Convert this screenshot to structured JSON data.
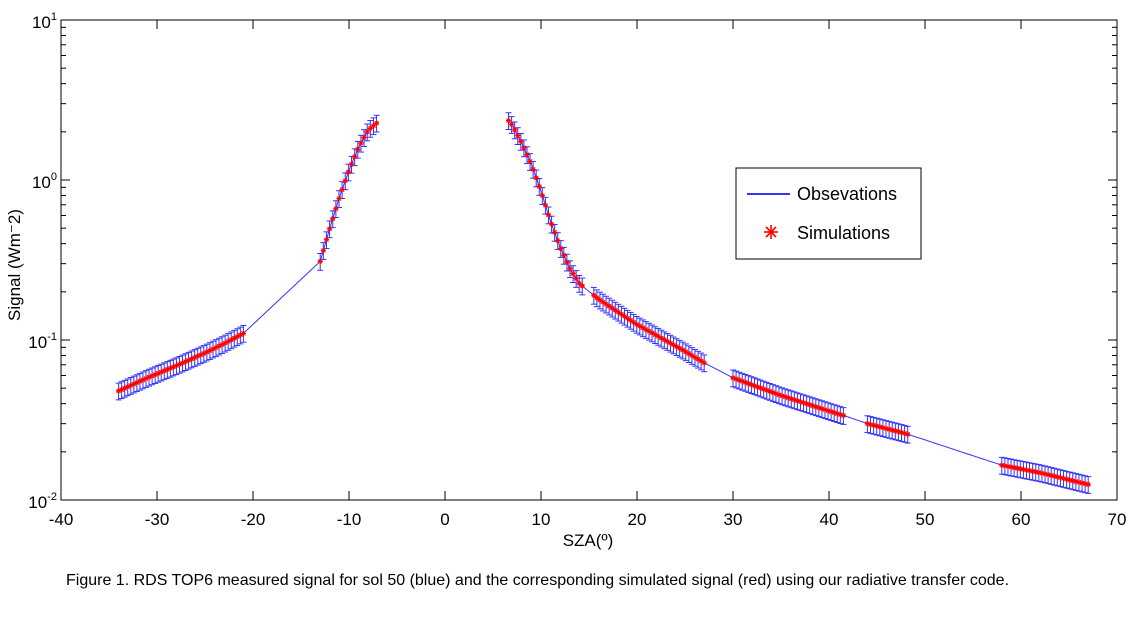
{
  "chart_data": {
    "type": "scatter",
    "xlabel": "SZA(º)",
    "ylabel": "Signal (Wm⁻2)",
    "xlim": [
      -40,
      70
    ],
    "ylim": [
      0.01,
      10
    ],
    "yscale": "log",
    "grid": false,
    "legend_position": "right-center",
    "xticks": [
      "-40",
      "-30",
      "-20",
      "-10",
      "0",
      "10",
      "20",
      "30",
      "40",
      "50",
      "60",
      "70"
    ],
    "yticks": [
      {
        "base": "10",
        "exp": "-2",
        "value": 0.01
      },
      {
        "base": "10",
        "exp": "-1",
        "value": 0.1
      },
      {
        "base": "10",
        "exp": "0",
        "value": 1
      },
      {
        "base": "10",
        "exp": "1",
        "value": 10
      }
    ],
    "series": [
      {
        "name": "Obsevations",
        "color": "#3333ff",
        "style": "line-with-errorbars",
        "error_fraction": 0.12,
        "segments": [
          {
            "x": [
              -34,
              -31,
              -28,
              -25,
              -23,
              -21,
              -13,
              -12,
              -11,
              -10,
              -9,
              -8,
              -7
            ],
            "y": [
              0.048,
              0.058,
              0.069,
              0.083,
              0.095,
              0.11,
              0.31,
              0.5,
              0.78,
              1.15,
              1.6,
              2.05,
              2.3
            ]
          },
          {
            "x": [
              6.5,
              7,
              8,
              9,
              10,
              11,
              12,
              13,
              14,
              16,
              20,
              25,
              27,
              30,
              35,
              40,
              42,
              44,
              48,
              58,
              62,
              67
            ],
            "y": [
              2.4,
              2.2,
              1.7,
              1.25,
              0.85,
              0.55,
              0.38,
              0.28,
              0.225,
              0.18,
              0.125,
              0.085,
              0.072,
              0.058,
              0.045,
              0.036,
              0.033,
              0.03,
              0.026,
              0.0165,
              0.0148,
              0.0125
            ]
          }
        ],
        "point_ranges": [
          [
            -34,
            -21
          ],
          [
            -13,
            -6.8
          ],
          [
            6.3,
            14.3
          ],
          [
            15.5,
            27
          ],
          [
            30,
            41.5
          ],
          [
            44,
            48.2
          ],
          [
            58,
            67
          ]
        ]
      },
      {
        "name": "Simulations",
        "color": "#ff0000",
        "style": "star-markers"
      }
    ]
  },
  "caption": "Figure 1. RDS TOP6 measured signal for sol 50 (blue) and the corresponding simulated signal (red) using our radiative transfer code."
}
